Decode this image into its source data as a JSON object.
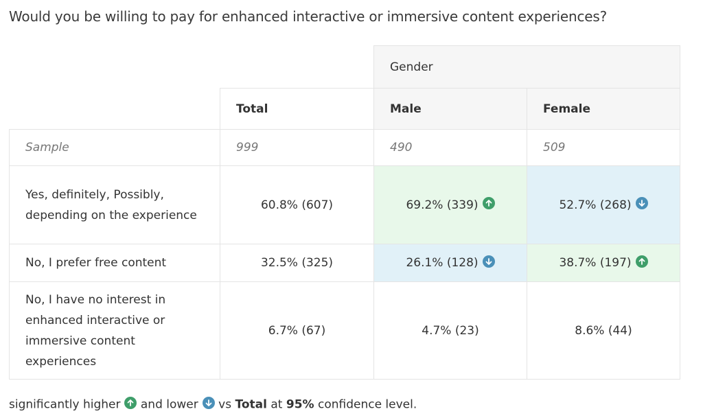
{
  "title": "Would you be willing to pay for enhanced interactive or immersive content experiences?",
  "table": {
    "column_group": "Gender",
    "columns": [
      "Total",
      "Male",
      "Female"
    ],
    "sample_label": "Sample",
    "sample": [
      "999",
      "490",
      "509"
    ],
    "rows": [
      {
        "label": "Yes, definitely, Possibly, depending on the experience",
        "cells": [
          {
            "text": "60.8% (607)",
            "significance": null
          },
          {
            "text": "69.2% (339)",
            "significance": "higher"
          },
          {
            "text": "52.7% (268)",
            "significance": "lower"
          }
        ]
      },
      {
        "label": "No, I prefer free content",
        "cells": [
          {
            "text": "32.5% (325)",
            "significance": null
          },
          {
            "text": "26.1% (128)",
            "significance": "lower"
          },
          {
            "text": "38.7% (197)",
            "significance": "higher"
          }
        ]
      },
      {
        "label": "No, I have no interest in enhanced interactive or immersive content experiences",
        "cells": [
          {
            "text": "6.7% (67)",
            "significance": null
          },
          {
            "text": "4.7% (23)",
            "significance": null
          },
          {
            "text": "8.6% (44)",
            "significance": null
          }
        ]
      }
    ]
  },
  "footer": {
    "before": "significantly higher",
    "middle": "and lower",
    "vs": "vs",
    "reference": "Total",
    "at": "at",
    "level": "95%",
    "after": "confidence level."
  }
}
